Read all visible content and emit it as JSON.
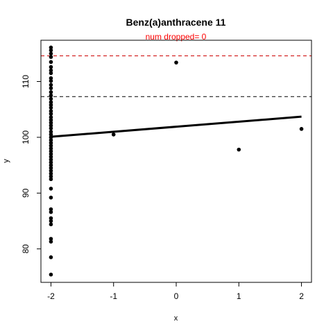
{
  "chart_data": {
    "type": "scatter",
    "title": "Benz(a)anthracene 11",
    "subtitle": "num dropped= 0",
    "xlabel": "x",
    "ylabel": "y",
    "xlim": [
      -2.16,
      2.16
    ],
    "ylim": [
      74.0,
      117.4
    ],
    "x_ticks": [
      -2,
      -1,
      0,
      1,
      2
    ],
    "x_tick_labels": [
      "-2",
      "-1",
      "0",
      "1",
      "2"
    ],
    "y_ticks": [
      80,
      90,
      100,
      110
    ],
    "y_tick_labels": [
      "80",
      "90",
      "100",
      "110"
    ],
    "grid": false,
    "colors": {
      "points": "#000000",
      "fit_line": "#000000",
      "upper_limit": "#cc0000",
      "lower_limit": "#000000",
      "subtitle": "#ff0000"
    },
    "reference_lines": [
      {
        "y": 114.6,
        "color": "#cc0000",
        "style": "dashed"
      },
      {
        "y": 107.3,
        "color": "#000000",
        "style": "dashed"
      }
    ],
    "fit_line": {
      "x": [
        -2,
        2
      ],
      "y": [
        100.1,
        103.7
      ]
    },
    "points": [
      {
        "x": -2,
        "y": 116.1
      },
      {
        "x": -2,
        "y": 115.6
      },
      {
        "x": -2,
        "y": 115.0
      },
      {
        "x": -2,
        "y": 114.4
      },
      {
        "x": -2,
        "y": 113.5
      },
      {
        "x": -2,
        "y": 112.6
      },
      {
        "x": -2,
        "y": 112.0
      },
      {
        "x": -2,
        "y": 111.5
      },
      {
        "x": -2,
        "y": 110.6
      },
      {
        "x": -2,
        "y": 110.1
      },
      {
        "x": -2,
        "y": 109.4
      },
      {
        "x": -2,
        "y": 108.8
      },
      {
        "x": -2,
        "y": 108.1
      },
      {
        "x": -2,
        "y": 107.5
      },
      {
        "x": -2,
        "y": 106.9
      },
      {
        "x": -2,
        "y": 106.3
      },
      {
        "x": -2,
        "y": 105.8
      },
      {
        "x": -2,
        "y": 105.3
      },
      {
        "x": -2,
        "y": 104.7
      },
      {
        "x": -2,
        "y": 104.2
      },
      {
        "x": -2,
        "y": 103.6
      },
      {
        "x": -2,
        "y": 103.1
      },
      {
        "x": -2,
        "y": 102.6
      },
      {
        "x": -2,
        "y": 102.1
      },
      {
        "x": -2,
        "y": 101.6
      },
      {
        "x": -2,
        "y": 101.0
      },
      {
        "x": -2,
        "y": 100.5
      },
      {
        "x": -2,
        "y": 100.0
      },
      {
        "x": -2,
        "y": 99.5
      },
      {
        "x": -2,
        "y": 99.0
      },
      {
        "x": -2,
        "y": 98.5
      },
      {
        "x": -2,
        "y": 98.0
      },
      {
        "x": -2,
        "y": 97.5
      },
      {
        "x": -2,
        "y": 97.0
      },
      {
        "x": -2,
        "y": 96.5
      },
      {
        "x": -2,
        "y": 96.0
      },
      {
        "x": -2,
        "y": 95.5
      },
      {
        "x": -2,
        "y": 95.0
      },
      {
        "x": -2,
        "y": 94.5
      },
      {
        "x": -2,
        "y": 94.0
      },
      {
        "x": -2,
        "y": 93.5
      },
      {
        "x": -2,
        "y": 93.0
      },
      {
        "x": -2,
        "y": 92.5
      },
      {
        "x": -2,
        "y": 90.8
      },
      {
        "x": -2,
        "y": 89.2
      },
      {
        "x": -2,
        "y": 87.1
      },
      {
        "x": -2,
        "y": 86.6
      },
      {
        "x": -2,
        "y": 85.5
      },
      {
        "x": -2,
        "y": 85.0
      },
      {
        "x": -2,
        "y": 84.4
      },
      {
        "x": -2,
        "y": 81.8
      },
      {
        "x": -2,
        "y": 81.3
      },
      {
        "x": -2,
        "y": 78.5
      },
      {
        "x": -2,
        "y": 75.4
      },
      {
        "x": -1,
        "y": 100.5
      },
      {
        "x": 0,
        "y": 113.4
      },
      {
        "x": 1,
        "y": 97.8
      },
      {
        "x": 2,
        "y": 101.5
      }
    ]
  }
}
